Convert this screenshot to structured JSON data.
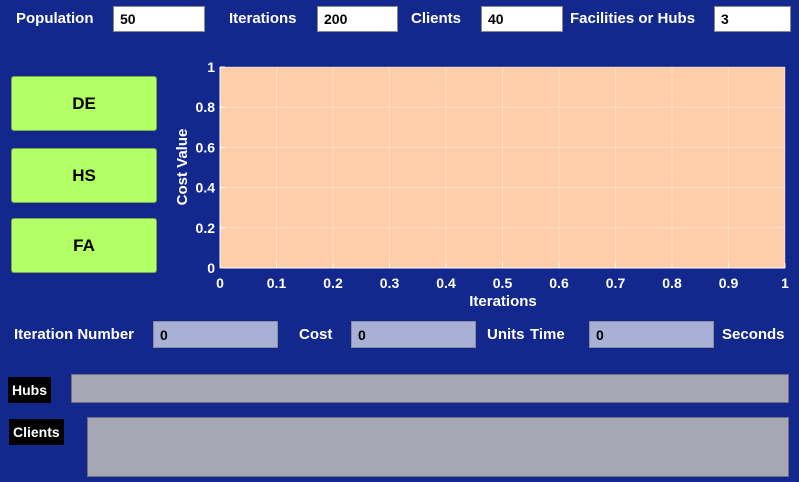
{
  "top_params": {
    "population": {
      "label": "Population",
      "value": "50"
    },
    "iterations": {
      "label": "Iterations",
      "value": "200"
    },
    "clients": {
      "label": "Clients",
      "value": "40"
    },
    "facilities": {
      "label": "Facilities or Hubs",
      "value": "3"
    }
  },
  "buttons": {
    "de": "DE",
    "hs": "HS",
    "fa": "FA"
  },
  "chart_data": {
    "type": "line",
    "xlabel": "Iterations",
    "ylabel": "Cost Value",
    "xlim": [
      0,
      1
    ],
    "ylim": [
      0,
      1
    ],
    "xticks": [
      "0",
      "0.1",
      "0.2",
      "0.3",
      "0.4",
      "0.5",
      "0.6",
      "0.7",
      "0.8",
      "0.9",
      "1"
    ],
    "yticks": [
      "0",
      "0.2",
      "0.4",
      "0.6",
      "0.8",
      "1"
    ],
    "grid": true,
    "series": [],
    "plot_background": "#ffcdaa"
  },
  "results": {
    "iteration_number": {
      "label": "Iteration Number",
      "value": "0"
    },
    "cost": {
      "label": "Cost",
      "value": "0"
    },
    "units_label": "Units",
    "time": {
      "label": "Time",
      "value": "0"
    },
    "seconds_label": "Seconds"
  },
  "output": {
    "hubs_label": "Hubs",
    "clients_label": "Clients"
  },
  "colors": {
    "background": "#13288c",
    "button": "#b3ff66",
    "readonly_field": "#a9b0d6",
    "output_box": "#a7a7b4"
  }
}
